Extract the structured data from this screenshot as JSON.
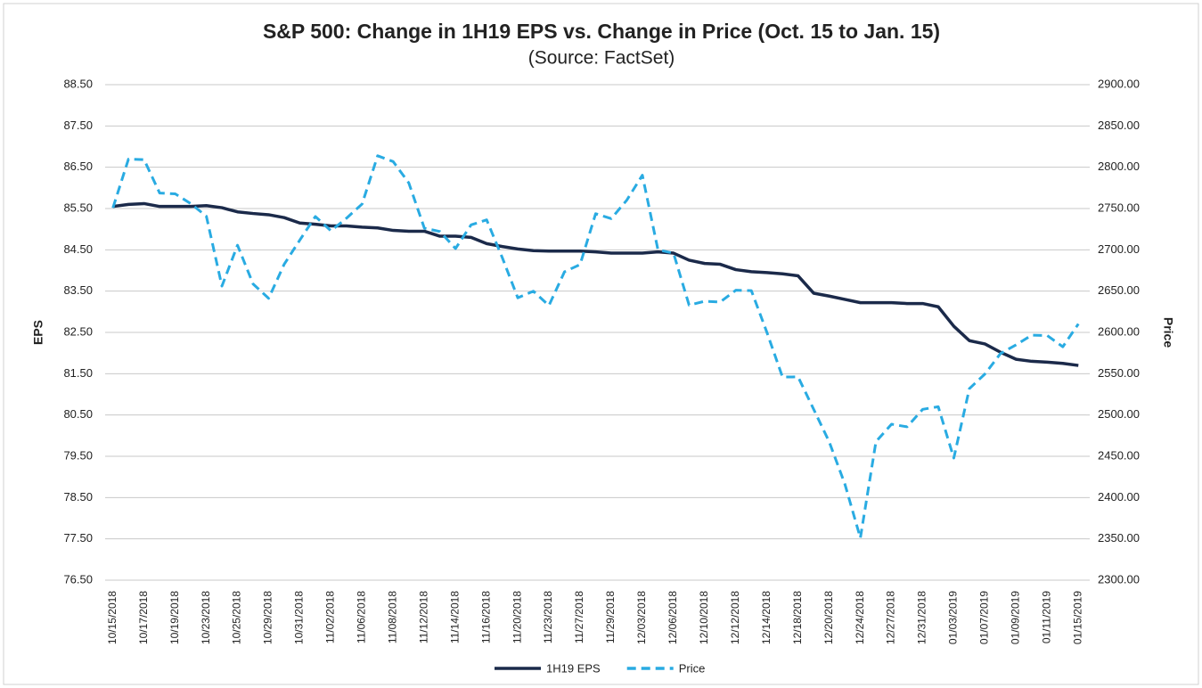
{
  "chart_data": {
    "type": "line",
    "title": "S&P 500: Change in 1H19 EPS vs. Change in Price (Oct. 15 to Jan. 15)",
    "subtitle": "(Source: FactSet)",
    "ylabel": "EPS",
    "y2label": "Price",
    "categories": [
      "10/15/2018",
      null,
      "10/17/2018",
      null,
      "10/19/2018",
      null,
      "10/23/2018",
      null,
      "10/25/2018",
      null,
      "10/29/2018",
      null,
      "10/31/2018",
      null,
      "11/02/2018",
      null,
      "11/06/2018",
      null,
      "11/08/2018",
      null,
      "11/12/2018",
      null,
      "11/14/2018",
      null,
      "11/16/2018",
      null,
      "11/20/2018",
      null,
      "11/23/2018",
      null,
      "11/27/2018",
      null,
      "11/29/2018",
      null,
      "12/03/2018",
      null,
      "12/06/2018",
      null,
      "12/10/2018",
      null,
      "12/12/2018",
      null,
      "12/14/2018",
      null,
      "12/18/2018",
      null,
      "12/20/2018",
      null,
      "12/24/2018",
      null,
      "12/27/2018",
      null,
      "12/31/2018",
      null,
      "01/03/2019",
      null,
      "01/07/2019",
      null,
      "01/09/2019",
      null,
      "01/11/2019",
      null,
      "01/15/2019"
    ],
    "series": [
      {
        "name": "1H19 EPS",
        "color": "#1b2a4a",
        "axis": "y",
        "dashed": false,
        "values": [
          85.55,
          85.6,
          85.62,
          85.55,
          85.55,
          85.55,
          85.57,
          85.52,
          85.42,
          85.38,
          85.35,
          85.28,
          85.15,
          85.12,
          85.08,
          85.08,
          85.05,
          85.03,
          84.97,
          84.95,
          84.95,
          84.83,
          84.83,
          84.8,
          84.65,
          84.58,
          84.52,
          84.48,
          84.47,
          84.47,
          84.47,
          84.45,
          84.42,
          84.42,
          84.42,
          84.45,
          84.42,
          84.25,
          84.17,
          84.15,
          84.02,
          83.97,
          83.95,
          83.92,
          83.87,
          83.45,
          83.38,
          83.3,
          83.22,
          83.22,
          83.22,
          83.2,
          83.2,
          83.12,
          82.65,
          82.3,
          82.22,
          82.02,
          81.85,
          81.8,
          81.78,
          81.75,
          81.7
        ]
      },
      {
        "name": "Price",
        "color": "#29abe2",
        "axis": "y2",
        "dashed": true,
        "values": [
          2750.79,
          2809.92,
          2809.21,
          2768.78,
          2767.78,
          2755.88,
          2740.69,
          2656.1,
          2705.57,
          2658.69,
          2641.25,
          2682.63,
          2711.74,
          2740.37,
          2723.06,
          2738.31,
          2755.45,
          2813.89,
          2806.83,
          2781.01,
          2726.22,
          2722.18,
          2701.58,
          2730.2,
          2736.27,
          2690.73,
          2641.89,
          2649.93,
          2632.56,
          2673.45,
          2682.17,
          2743.79,
          2737.8,
          2760.17,
          2790.37,
          2700.06,
          2695.95,
          2633.08,
          2637.72,
          2636.78,
          2651.07,
          2650.54,
          2599.95,
          2545.94,
          2546.16,
          2506.96,
          2467.42,
          2416.62,
          2351.1,
          2467.7,
          2488.83,
          2485.74,
          2506.85,
          2510.03,
          2447.89,
          2531.94,
          2549.69,
          2574.41,
          2584.96,
          2596.64,
          2596.26,
          2582.61,
          2610.3
        ]
      }
    ],
    "ylim": [
      76.5,
      88.5
    ],
    "yticks": [
      {
        "value": 76.5,
        "label": "76.50"
      },
      {
        "value": 77.5,
        "label": "77.50"
      },
      {
        "value": 78.5,
        "label": "78.50"
      },
      {
        "value": 79.5,
        "label": "79.50"
      },
      {
        "value": 80.5,
        "label": "80.50"
      },
      {
        "value": 81.5,
        "label": "81.50"
      },
      {
        "value": 82.5,
        "label": "82.50"
      },
      {
        "value": 83.5,
        "label": "83.50"
      },
      {
        "value": 84.5,
        "label": "84.50"
      },
      {
        "value": 85.5,
        "label": "85.50"
      },
      {
        "value": 86.5,
        "label": "86.50"
      },
      {
        "value": 87.5,
        "label": "87.50"
      },
      {
        "value": 88.5,
        "label": "88.50"
      }
    ],
    "y2lim": [
      2300,
      2900
    ],
    "y2ticks": [
      {
        "value": 2300,
        "label": "2300.00"
      },
      {
        "value": 2350,
        "label": "2350.00"
      },
      {
        "value": 2400,
        "label": "2400.00"
      },
      {
        "value": 2450,
        "label": "2450.00"
      },
      {
        "value": 2500,
        "label": "2500.00"
      },
      {
        "value": 2550,
        "label": "2550.00"
      },
      {
        "value": 2600,
        "label": "2600.00"
      },
      {
        "value": 2650,
        "label": "2650.00"
      },
      {
        "value": 2700,
        "label": "2700.00"
      },
      {
        "value": 2750,
        "label": "2750.00"
      },
      {
        "value": 2800,
        "label": "2800.00"
      },
      {
        "value": 2850,
        "label": "2850.00"
      },
      {
        "value": 2900,
        "label": "2900.00"
      }
    ],
    "grid": true,
    "legend": "bottom"
  }
}
